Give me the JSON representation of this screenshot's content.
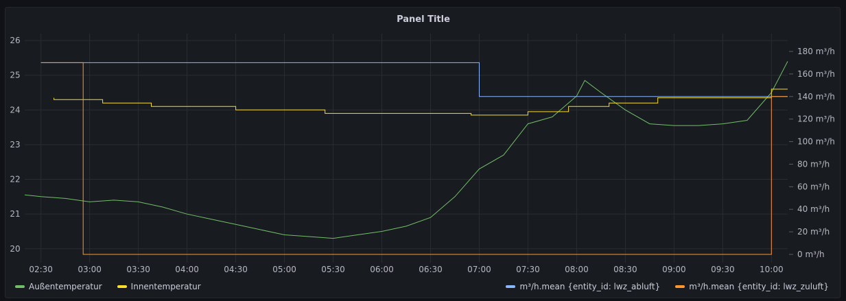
{
  "panel": {
    "title": "Panel Title"
  },
  "chart_data": {
    "type": "line",
    "title": "Panel Title",
    "x_ticks": [
      "02:30",
      "03:00",
      "03:30",
      "04:00",
      "04:30",
      "05:00",
      "05:30",
      "06:00",
      "06:30",
      "07:00",
      "07:30",
      "08:00",
      "08:30",
      "09:00",
      "09:30",
      "10:00"
    ],
    "y_left": {
      "ticks": [
        20,
        21,
        22,
        23,
        24,
        25,
        26
      ],
      "range": [
        19.6,
        26.2
      ]
    },
    "y_right": {
      "ticks": [
        "0 m³/h",
        "20 m³/h",
        "40 m³/h",
        "60 m³/h",
        "80 m³/h",
        "100 m³/h",
        "120 m³/h",
        "140 m³/h",
        "160 m³/h",
        "180 m³/h"
      ],
      "range": [
        0,
        180
      ],
      "unit": "m³/h"
    },
    "grid": true,
    "legend_left": [
      {
        "name": "Außentemperatur",
        "color": "#73bf69"
      },
      {
        "name": "Innentemperatur",
        "color": "#fade2a"
      }
    ],
    "legend_right": [
      {
        "name": "m³/h.mean {entity_id: lwz_abluft}",
        "color": "#8ab8ff"
      },
      {
        "name": "m³/h.mean {entity_id: lwz_zuluft}",
        "color": "#ff9830"
      }
    ],
    "series": [
      {
        "name": "Außentemperatur",
        "axis": "left",
        "color": "#73bf69",
        "points": [
          [
            "02:20",
            21.55
          ],
          [
            "02:30",
            21.5
          ],
          [
            "02:45",
            21.45
          ],
          [
            "03:00",
            21.35
          ],
          [
            "03:15",
            21.4
          ],
          [
            "03:30",
            21.35
          ],
          [
            "03:45",
            21.2
          ],
          [
            "04:00",
            21.0
          ],
          [
            "04:15",
            20.85
          ],
          [
            "04:30",
            20.7
          ],
          [
            "04:45",
            20.55
          ],
          [
            "05:00",
            20.4
          ],
          [
            "05:15",
            20.35
          ],
          [
            "05:30",
            20.3
          ],
          [
            "05:45",
            20.4
          ],
          [
            "06:00",
            20.5
          ],
          [
            "06:15",
            20.65
          ],
          [
            "06:30",
            20.9
          ],
          [
            "06:45",
            21.5
          ],
          [
            "07:00",
            22.3
          ],
          [
            "07:15",
            22.7
          ],
          [
            "07:30",
            23.6
          ],
          [
            "07:45",
            23.8
          ],
          [
            "08:00",
            24.4
          ],
          [
            "08:05",
            24.85
          ],
          [
            "08:15",
            24.5
          ],
          [
            "08:30",
            24.0
          ],
          [
            "08:45",
            23.6
          ],
          [
            "09:00",
            23.55
          ],
          [
            "09:15",
            23.55
          ],
          [
            "09:30",
            23.6
          ],
          [
            "09:45",
            23.7
          ],
          [
            "10:00",
            24.5
          ],
          [
            "10:10",
            25.4
          ]
        ]
      },
      {
        "name": "Innentemperatur",
        "axis": "left",
        "color": "#fade2a",
        "points": [
          [
            "02:38",
            24.35
          ],
          [
            "02:38",
            24.3
          ],
          [
            "03:08",
            24.3
          ],
          [
            "03:08",
            24.2
          ],
          [
            "03:38",
            24.2
          ],
          [
            "03:38",
            24.1
          ],
          [
            "04:30",
            24.1
          ],
          [
            "04:30",
            24.0
          ],
          [
            "05:25",
            24.0
          ],
          [
            "05:25",
            23.9
          ],
          [
            "06:55",
            23.9
          ],
          [
            "06:55",
            23.85
          ],
          [
            "07:30",
            23.85
          ],
          [
            "07:30",
            23.95
          ],
          [
            "07:55",
            23.95
          ],
          [
            "07:55",
            24.1
          ],
          [
            "08:20",
            24.1
          ],
          [
            "08:20",
            24.2
          ],
          [
            "08:50",
            24.2
          ],
          [
            "08:50",
            24.35
          ],
          [
            "10:00",
            24.35
          ],
          [
            "10:00",
            24.6
          ],
          [
            "10:10",
            24.6
          ]
        ]
      },
      {
        "name": "m³/h.mean {entity_id: lwz_abluft}",
        "axis": "right",
        "color": "#8ab8ff",
        "points": [
          [
            "02:30",
            170
          ],
          [
            "07:00",
            170
          ],
          [
            "07:00",
            140
          ],
          [
            "10:10",
            140
          ]
        ]
      },
      {
        "name": "m³/h.mean {entity_id: lwz_zuluft}",
        "axis": "right",
        "color": "#ff9830",
        "points": [
          [
            "02:30",
            170
          ],
          [
            "02:56",
            170
          ],
          [
            "02:56",
            0
          ],
          [
            "10:00",
            0
          ],
          [
            "10:00",
            140
          ],
          [
            "10:10",
            140
          ]
        ]
      }
    ]
  }
}
